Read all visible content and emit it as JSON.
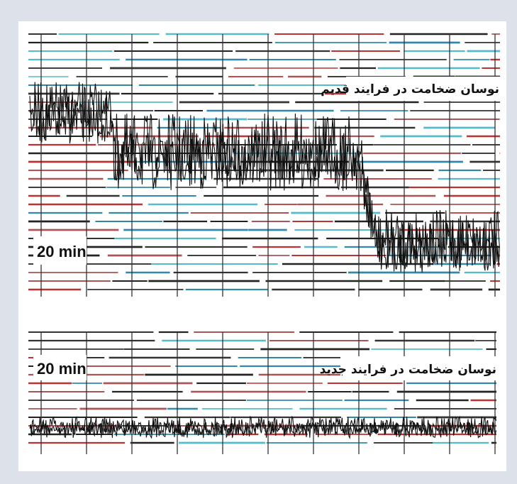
{
  "panels": [
    {
      "scale_label": "20 min",
      "caption": "نوسان ضخامت در فرایند قدیم"
    },
    {
      "scale_label": "20 min",
      "caption": "نوسان ضخامت در فرایند جدید"
    }
  ]
}
